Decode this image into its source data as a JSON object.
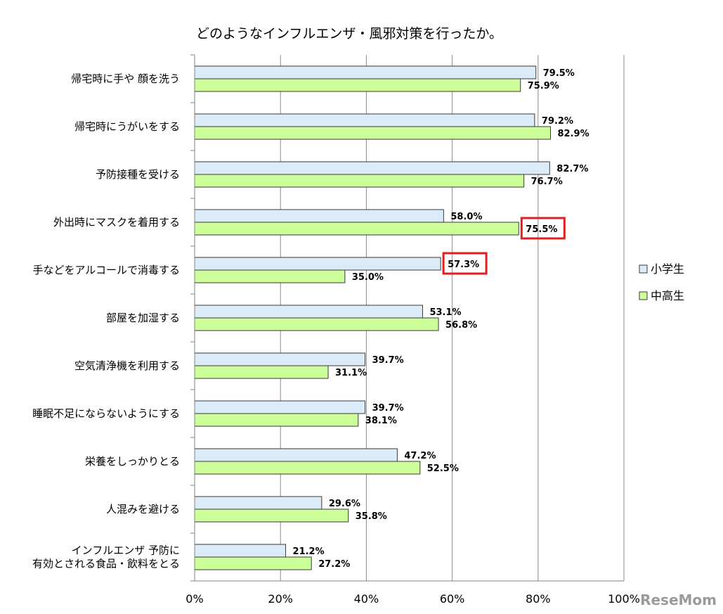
{
  "chart_data": {
    "type": "bar",
    "orientation": "horizontal",
    "title": "どのようなインフルエンザ・風邪対策を行ったか。",
    "categories": [
      [
        "帰宅時に手や 顔を洗う"
      ],
      [
        "帰宅時にうがいをする"
      ],
      [
        "予防接種を受ける"
      ],
      [
        "外出時にマスクを着用する"
      ],
      [
        "手などをアルコールで消毒する"
      ],
      [
        "部屋を加湿する"
      ],
      [
        "空気清浄機を利用する"
      ],
      [
        "睡眠不足にならないようにする"
      ],
      [
        "栄養をしっかりとる"
      ],
      [
        "人混みを避ける"
      ],
      [
        "インフルエンザ 予防に",
        "有効とされる食品・飲料をとる"
      ]
    ],
    "series": [
      {
        "name": "小学生",
        "color": "#dcebf8",
        "values": [
          79.5,
          79.2,
          82.7,
          58.0,
          57.3,
          53.1,
          39.7,
          39.7,
          47.2,
          29.6,
          21.2
        ],
        "labels": [
          "79.5%",
          "79.2%",
          "82.7%",
          "58.0%",
          "57.3%",
          "53.1%",
          "39.7%",
          "39.7%",
          "47.2%",
          "29.6%",
          "21.2%"
        ]
      },
      {
        "name": "中高生",
        "color": "#ccff99",
        "values": [
          75.9,
          82.9,
          76.7,
          75.5,
          35.0,
          56.8,
          31.1,
          38.1,
          52.5,
          35.8,
          27.2
        ],
        "labels": [
          "75.9%",
          "82.9%",
          "76.7%",
          "75.5%",
          "35.0%",
          "56.8%",
          "31.1%",
          "38.1%",
          "52.5%",
          "35.8%",
          "27.2%"
        ]
      }
    ],
    "xlim": [
      0,
      100
    ],
    "xticks": [
      "0%",
      "20%",
      "40%",
      "60%",
      "80%",
      "100%"
    ],
    "grid": true,
    "legend_position": "right",
    "highlight_color": "#e02020",
    "highlights": [
      {
        "category_index": 3,
        "series_index": 1
      },
      {
        "category_index": 4,
        "series_index": 0
      }
    ]
  },
  "watermark": "ReseMom"
}
